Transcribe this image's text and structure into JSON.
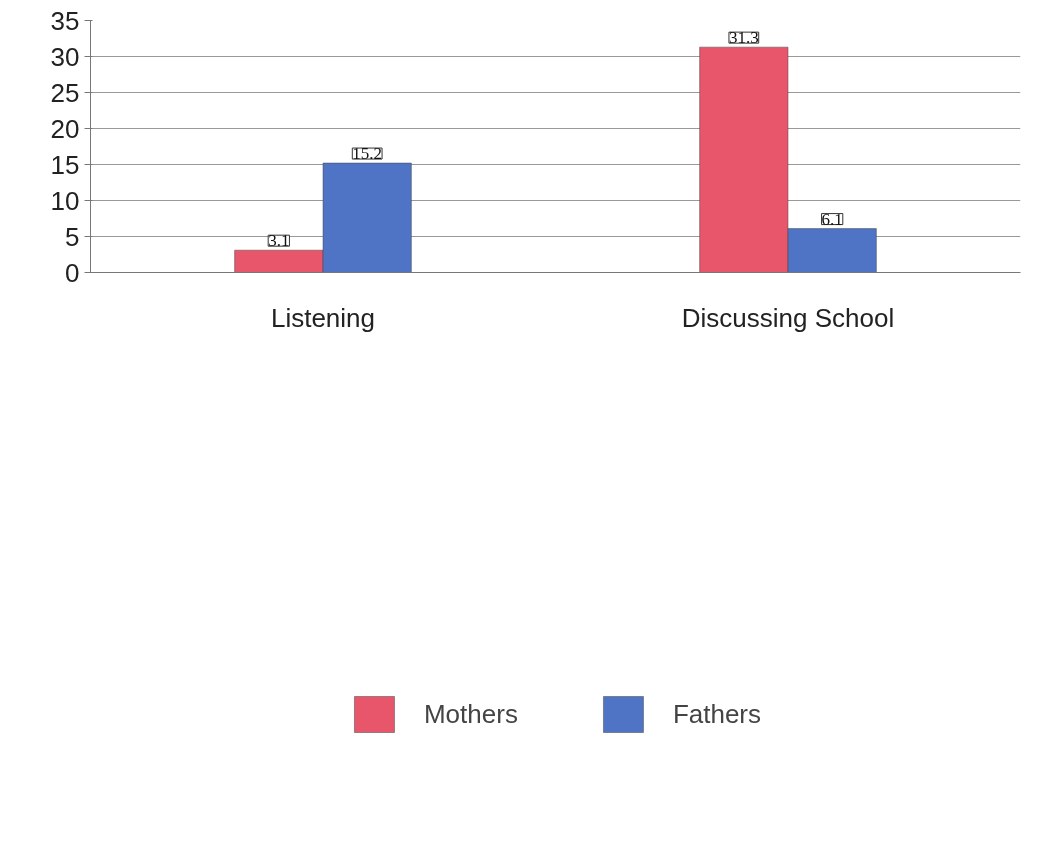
{
  "chart_data": {
    "type": "bar",
    "categories": [
      "Listening",
      "Discussing School"
    ],
    "series": [
      {
        "name": "Mothers",
        "color": "#e8566c",
        "values": [
          3.1,
          31.3
        ]
      },
      {
        "name": "Fathers",
        "color": "#4f74c6",
        "values": [
          15.2,
          6.1
        ]
      }
    ],
    "ylim": [
      0,
      35
    ],
    "yticks": [
      0,
      5,
      10,
      15,
      20,
      25,
      30,
      35
    ],
    "grid": "y",
    "legend": "bottom",
    "data_labels": true
  }
}
